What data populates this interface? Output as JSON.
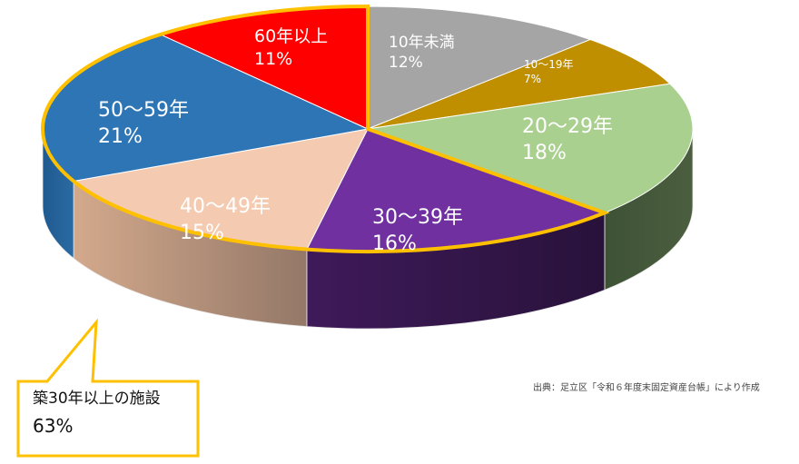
{
  "chart_data": {
    "type": "pie",
    "style": "3d-pie",
    "title": "",
    "categories": [
      "10年未満",
      "10～19年",
      "20～29年",
      "30～39年",
      "40～49年",
      "50～59年",
      "60年以上"
    ],
    "values": [
      12,
      7,
      18,
      16,
      15,
      21,
      11
    ],
    "unit": "%",
    "colors": [
      "#A5A5A5",
      "#BF8F00",
      "#A9D08E",
      "#7030A0",
      "#F4CBB0",
      "#2E75B6",
      "#FF0000"
    ],
    "side_colors": [
      "#6f6f6f",
      "#7a5b00",
      "#44553a",
      "#2c1640",
      "#a07f6a",
      "#1f4f7a",
      "#a80000"
    ],
    "highlight": {
      "categories": [
        "30～39年",
        "40～49年",
        "50～59年",
        "60年以上"
      ],
      "outline_color": "#FFC000",
      "summary": "築30年以上の施設",
      "summary_value": "63%"
    },
    "legend": "none (data labels on slices)"
  },
  "slices": [
    {
      "label": "10年未満",
      "pct": "12%"
    },
    {
      "label": "10～19年",
      "pct": "7%"
    },
    {
      "label": "20～29年",
      "pct": "18%"
    },
    {
      "label": "30～39年",
      "pct": "16%"
    },
    {
      "label": "40～49年",
      "pct": "15%"
    },
    {
      "label": "50～59年",
      "pct": "21%"
    },
    {
      "label": "60年以上",
      "pct": "11%"
    }
  ],
  "callout": {
    "line1": "築30年以上の施設",
    "line2": "63%"
  },
  "source": "出典：足立区「令和６年度末固定資産台帳」により作成"
}
